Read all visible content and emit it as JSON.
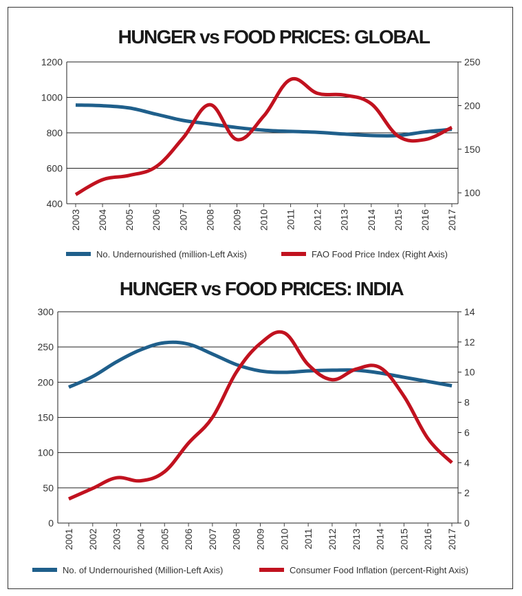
{
  "chart_data": [
    {
      "type": "line",
      "title": "HUNGER vs FOOD PRICES: GLOBAL",
      "categories": [
        "2003",
        "2004",
        "2005",
        "2006",
        "2007",
        "2008",
        "2009",
        "2010",
        "2011",
        "2012",
        "2013",
        "2014",
        "2015",
        "2016",
        "2017"
      ],
      "left_axis": {
        "range": [
          400,
          1200
        ],
        "ticks": [
          "400",
          "600",
          "800",
          "1000",
          "1200"
        ]
      },
      "right_axis": {
        "range": [
          87.5,
          250
        ],
        "ticks": [
          "100",
          "150",
          "200",
          "250"
        ]
      },
      "grid": "horizontal",
      "legend_placement": "bottom",
      "series": [
        {
          "name": "No. Undernourished (million-Left Axis)",
          "axis": "left",
          "color": "#1f5f8b",
          "values": [
            957,
            953,
            940,
            905,
            870,
            850,
            830,
            815,
            808,
            803,
            793,
            785,
            785,
            805,
            820
          ]
        },
        {
          "name": "FAO Food Price Index (Right Axis)",
          "axis": "right",
          "color": "#c1121f",
          "values": [
            98,
            115,
            120,
            130,
            163,
            201,
            161,
            188,
            230,
            214,
            212,
            202,
            165,
            161,
            175
          ]
        }
      ]
    },
    {
      "type": "line",
      "title": "HUNGER vs FOOD PRICES: INDIA",
      "categories": [
        "2001",
        "2002",
        "2003",
        "2004",
        "2005",
        "2006",
        "2007",
        "2008",
        "2009",
        "2010",
        "2011",
        "2012",
        "2013",
        "2014",
        "2015",
        "2016",
        "2017"
      ],
      "left_axis": {
        "range": [
          0,
          300
        ],
        "ticks": [
          "0",
          "50",
          "100",
          "150",
          "200",
          "250",
          "300"
        ]
      },
      "right_axis": {
        "range": [
          0,
          14
        ],
        "ticks": [
          "0",
          "2",
          "4",
          "6",
          "8",
          "10",
          "12",
          "14"
        ]
      },
      "grid": "horizontal",
      "legend_placement": "bottom",
      "series": [
        {
          "name": "No. of Undernourished (Million-Left Axis)",
          "axis": "left",
          "color": "#1f5f8b",
          "values": [
            193,
            208,
            229,
            246,
            256,
            254,
            240,
            225,
            216,
            214,
            216,
            217,
            217,
            213,
            207,
            201,
            195
          ]
        },
        {
          "name": "Consumer Food Inflation (percent-Right Axis)",
          "axis": "right",
          "color": "#c1121f",
          "values": [
            1.6,
            2.3,
            3.0,
            2.8,
            3.4,
            5.3,
            7.0,
            10.0,
            11.9,
            12.6,
            10.5,
            9.5,
            10.2,
            10.3,
            8.4,
            5.6,
            4.0
          ]
        }
      ]
    }
  ]
}
